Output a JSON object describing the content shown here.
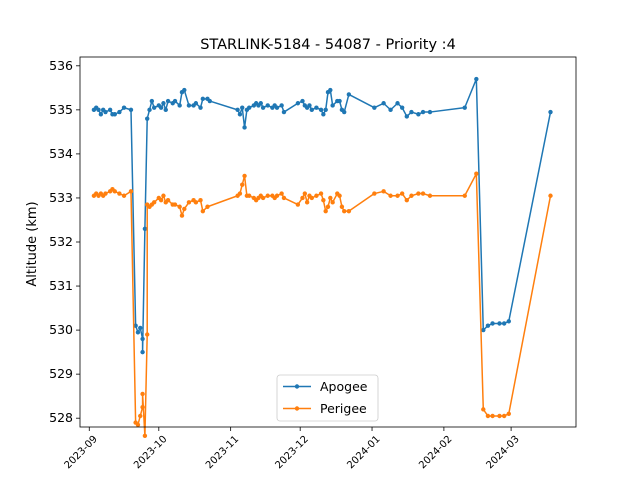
{
  "chart_data": {
    "type": "line",
    "title": "STARLINK-5184 - 54087 - Priority :4",
    "xlabel": "",
    "ylabel": "Altitude (km)",
    "ylim": [
      527.8,
      536.2
    ],
    "xlim": [
      "2023-08-28",
      "2024-03-29"
    ],
    "yticks": [
      528,
      529,
      530,
      531,
      532,
      533,
      534,
      535,
      536
    ],
    "xticks": [
      "2023-09",
      "2023-10",
      "2023-11",
      "2023-12",
      "2024-01",
      "2024-02",
      "2024-03"
    ],
    "grid": false,
    "legend": "lower-center",
    "series": [
      {
        "name": "Apogee",
        "color": "#1f77b4",
        "points": [
          [
            "2023-09-03",
            535.0
          ],
          [
            "2023-09-04",
            535.05
          ],
          [
            "2023-09-05",
            535.0
          ],
          [
            "2023-09-06",
            534.9
          ],
          [
            "2023-09-07",
            535.0
          ],
          [
            "2023-09-08",
            534.95
          ],
          [
            "2023-09-10",
            535.0
          ],
          [
            "2023-09-11",
            534.9
          ],
          [
            "2023-09-12",
            534.9
          ],
          [
            "2023-09-14",
            534.95
          ],
          [
            "2023-09-16",
            535.05
          ],
          [
            "2023-09-19",
            535.0
          ],
          [
            "2023-09-21",
            530.1
          ],
          [
            "2023-09-22",
            529.95
          ],
          [
            "2023-09-23",
            530.05
          ],
          [
            "2023-09-24",
            529.8
          ],
          [
            "2023-09-24",
            529.5
          ],
          [
            "2023-09-25",
            532.3
          ],
          [
            "2023-09-26",
            534.8
          ],
          [
            "2023-09-27",
            535.0
          ],
          [
            "2023-09-28",
            535.2
          ],
          [
            "2023-09-29",
            535.05
          ],
          [
            "2023-10-01",
            535.1
          ],
          [
            "2023-10-02",
            535.05
          ],
          [
            "2023-10-03",
            535.15
          ],
          [
            "2023-10-04",
            535.0
          ],
          [
            "2023-10-05",
            535.2
          ],
          [
            "2023-10-07",
            535.15
          ],
          [
            "2023-10-08",
            535.2
          ],
          [
            "2023-10-10",
            535.1
          ],
          [
            "2023-10-11",
            535.4
          ],
          [
            "2023-10-12",
            535.45
          ],
          [
            "2023-10-14",
            535.1
          ],
          [
            "2023-10-16",
            535.1
          ],
          [
            "2023-10-17",
            535.15
          ],
          [
            "2023-10-19",
            535.05
          ],
          [
            "2023-10-20",
            535.25
          ],
          [
            "2023-10-22",
            535.25
          ],
          [
            "2023-10-23",
            535.2
          ],
          [
            "2023-11-04",
            535.0
          ],
          [
            "2023-11-05",
            534.9
          ],
          [
            "2023-11-06",
            535.05
          ],
          [
            "2023-11-07",
            534.6
          ],
          [
            "2023-11-08",
            535.0
          ],
          [
            "2023-11-09",
            535.05
          ],
          [
            "2023-11-11",
            535.1
          ],
          [
            "2023-11-12",
            535.15
          ],
          [
            "2023-11-13",
            535.1
          ],
          [
            "2023-11-14",
            535.15
          ],
          [
            "2023-11-15",
            535.05
          ],
          [
            "2023-11-17",
            535.1
          ],
          [
            "2023-11-19",
            535.05
          ],
          [
            "2023-11-20",
            535.1
          ],
          [
            "2023-11-21",
            535.05
          ],
          [
            "2023-11-23",
            535.1
          ],
          [
            "2023-11-24",
            534.95
          ],
          [
            "2023-11-30",
            535.15
          ],
          [
            "2023-12-02",
            535.2
          ],
          [
            "2023-12-03",
            535.1
          ],
          [
            "2023-12-04",
            535.05
          ],
          [
            "2023-12-05",
            535.1
          ],
          [
            "2023-12-06",
            535.0
          ],
          [
            "2023-12-08",
            535.05
          ],
          [
            "2023-12-10",
            535.0
          ],
          [
            "2023-12-11",
            534.9
          ],
          [
            "2023-12-12",
            535.0
          ],
          [
            "2023-12-13",
            535.4
          ],
          [
            "2023-12-14",
            535.45
          ],
          [
            "2023-12-15",
            535.1
          ],
          [
            "2023-12-17",
            535.2
          ],
          [
            "2023-12-18",
            535.2
          ],
          [
            "2023-12-19",
            535.0
          ],
          [
            "2023-12-20",
            534.95
          ],
          [
            "2023-12-22",
            535.35
          ],
          [
            "2024-01-02",
            535.05
          ],
          [
            "2024-01-06",
            535.15
          ],
          [
            "2024-01-09",
            535.0
          ],
          [
            "2024-01-12",
            535.15
          ],
          [
            "2024-01-14",
            535.05
          ],
          [
            "2024-01-16",
            534.85
          ],
          [
            "2024-01-18",
            534.95
          ],
          [
            "2024-01-21",
            534.9
          ],
          [
            "2024-01-23",
            534.95
          ],
          [
            "2024-01-26",
            534.95
          ],
          [
            "2024-02-10",
            535.05
          ],
          [
            "2024-02-15",
            535.7
          ],
          [
            "2024-02-18",
            530.0
          ],
          [
            "2024-02-20",
            530.1
          ],
          [
            "2024-02-22",
            530.15
          ],
          [
            "2024-02-25",
            530.15
          ],
          [
            "2024-02-27",
            530.15
          ],
          [
            "2024-02-29",
            530.2
          ],
          [
            "2024-03-18",
            534.95
          ]
        ]
      },
      {
        "name": "Perigee",
        "color": "#ff7f0e",
        "points": [
          [
            "2023-09-03",
            533.05
          ],
          [
            "2023-09-04",
            533.1
          ],
          [
            "2023-09-05",
            533.05
          ],
          [
            "2023-09-06",
            533.1
          ],
          [
            "2023-09-07",
            533.05
          ],
          [
            "2023-09-08",
            533.1
          ],
          [
            "2023-09-10",
            533.15
          ],
          [
            "2023-09-11",
            533.2
          ],
          [
            "2023-09-12",
            533.15
          ],
          [
            "2023-09-14",
            533.1
          ],
          [
            "2023-09-16",
            533.05
          ],
          [
            "2023-09-19",
            533.15
          ],
          [
            "2023-09-21",
            527.9
          ],
          [
            "2023-09-22",
            527.85
          ],
          [
            "2023-09-23",
            528.05
          ],
          [
            "2023-09-24",
            528.25
          ],
          [
            "2023-09-24",
            528.55
          ],
          [
            "2023-09-25",
            527.6
          ],
          [
            "2023-09-26",
            529.9
          ],
          [
            "2023-09-26",
            532.85
          ],
          [
            "2023-09-27",
            532.8
          ],
          [
            "2023-09-28",
            532.85
          ],
          [
            "2023-09-29",
            532.9
          ],
          [
            "2023-10-01",
            533.0
          ],
          [
            "2023-10-02",
            532.95
          ],
          [
            "2023-10-03",
            533.05
          ],
          [
            "2023-10-04",
            532.9
          ],
          [
            "2023-10-05",
            532.95
          ],
          [
            "2023-10-07",
            532.85
          ],
          [
            "2023-10-08",
            532.85
          ],
          [
            "2023-10-10",
            532.8
          ],
          [
            "2023-10-11",
            532.6
          ],
          [
            "2023-10-12",
            532.75
          ],
          [
            "2023-10-14",
            532.9
          ],
          [
            "2023-10-16",
            532.95
          ],
          [
            "2023-10-17",
            532.9
          ],
          [
            "2023-10-19",
            532.95
          ],
          [
            "2023-10-20",
            532.7
          ],
          [
            "2023-10-22",
            532.8
          ],
          [
            "2023-11-04",
            533.05
          ],
          [
            "2023-11-05",
            533.1
          ],
          [
            "2023-11-06",
            533.3
          ],
          [
            "2023-11-07",
            533.5
          ],
          [
            "2023-11-08",
            533.05
          ],
          [
            "2023-11-09",
            533.05
          ],
          [
            "2023-11-11",
            533.0
          ],
          [
            "2023-11-12",
            532.95
          ],
          [
            "2023-11-13",
            533.0
          ],
          [
            "2023-11-14",
            533.05
          ],
          [
            "2023-11-15",
            533.0
          ],
          [
            "2023-11-17",
            533.05
          ],
          [
            "2023-11-19",
            533.05
          ],
          [
            "2023-11-20",
            533.0
          ],
          [
            "2023-11-21",
            533.05
          ],
          [
            "2023-11-23",
            533.1
          ],
          [
            "2023-11-24",
            533.0
          ],
          [
            "2023-11-30",
            532.85
          ],
          [
            "2023-12-02",
            533.0
          ],
          [
            "2023-12-03",
            533.1
          ],
          [
            "2023-12-04",
            532.9
          ],
          [
            "2023-12-05",
            533.05
          ],
          [
            "2023-12-06",
            533.0
          ],
          [
            "2023-12-08",
            533.05
          ],
          [
            "2023-12-10",
            533.1
          ],
          [
            "2023-12-11",
            532.95
          ],
          [
            "2023-12-12",
            532.7
          ],
          [
            "2023-12-13",
            532.8
          ],
          [
            "2023-12-14",
            533.0
          ],
          [
            "2023-12-15",
            532.9
          ],
          [
            "2023-12-17",
            533.1
          ],
          [
            "2023-12-18",
            533.05
          ],
          [
            "2023-12-19",
            532.8
          ],
          [
            "2023-12-20",
            532.7
          ],
          [
            "2023-12-22",
            532.7
          ],
          [
            "2024-01-02",
            533.1
          ],
          [
            "2024-01-06",
            533.15
          ],
          [
            "2024-01-09",
            533.05
          ],
          [
            "2024-01-12",
            533.05
          ],
          [
            "2024-01-14",
            533.1
          ],
          [
            "2024-01-16",
            532.95
          ],
          [
            "2024-01-18",
            533.05
          ],
          [
            "2024-01-21",
            533.1
          ],
          [
            "2024-01-23",
            533.1
          ],
          [
            "2024-01-26",
            533.05
          ],
          [
            "2024-02-10",
            533.05
          ],
          [
            "2024-02-15",
            533.55
          ],
          [
            "2024-02-18",
            528.2
          ],
          [
            "2024-02-20",
            528.05
          ],
          [
            "2024-02-22",
            528.05
          ],
          [
            "2024-02-25",
            528.05
          ],
          [
            "2024-02-27",
            528.05
          ],
          [
            "2024-02-29",
            528.1
          ],
          [
            "2024-03-18",
            533.05
          ]
        ]
      }
    ]
  }
}
